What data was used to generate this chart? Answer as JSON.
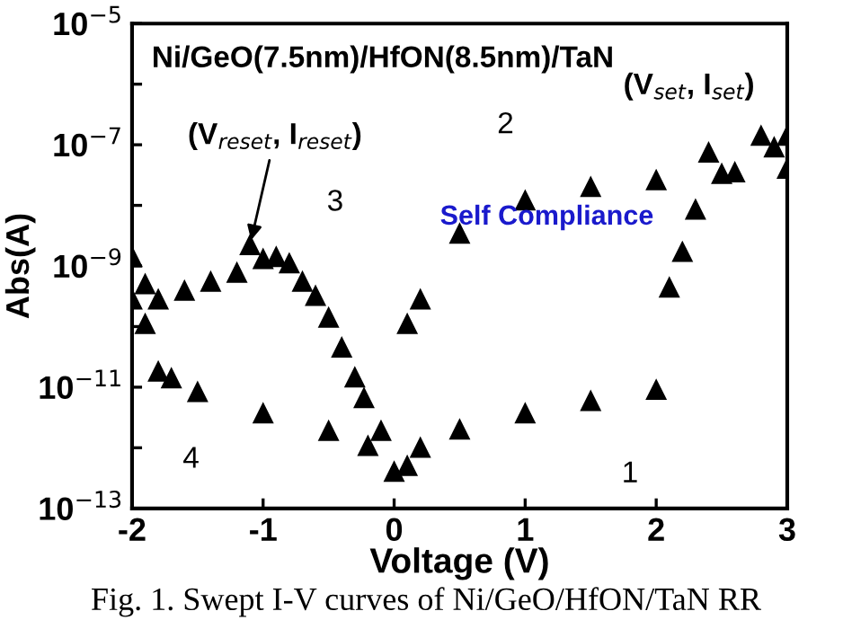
{
  "chart_data": {
    "type": "scatter",
    "title": "Ni/GeO(7.5nm)/HfON(8.5nm)/TaN",
    "xlabel": "Voltage (V)",
    "ylabel": "Abs(A)",
    "log": "y",
    "marker": "triangle",
    "xlim": [
      -2,
      3
    ],
    "xticks": [
      -2,
      -1,
      0,
      1,
      2,
      3
    ],
    "ylim": [
      1e-13,
      1e-05
    ],
    "yticks": [
      {
        "value": 1e-13,
        "label": "10$^{−13}$"
      },
      {
        "value": 1e-12,
        "label": null
      },
      {
        "value": 1e-11,
        "label": "10$^{−11}$"
      },
      {
        "value": 1e-10,
        "label": null
      },
      {
        "value": 1e-09,
        "label": "10$^{−9}$"
      },
      {
        "value": 1e-08,
        "label": null
      },
      {
        "value": 1e-07,
        "label": "10$^{−7}$"
      },
      {
        "value": 1e-06,
        "label": null
      },
      {
        "value": 1e-05,
        "label": "10$^{−5}$"
      }
    ],
    "series": [
      {
        "color": "#000000",
        "x": [
          0.1,
          0.2,
          0.5,
          1.0,
          1.5,
          2.0,
          2.1,
          2.2,
          2.3,
          2.4,
          2.5,
          2.6,
          2.8,
          2.9,
          3.0
        ],
        "values": [
          5e-13,
          1e-12,
          2e-12,
          3.7e-12,
          5.9e-12,
          9e-12,
          4.4e-10,
          1.7e-09,
          8.5e-09,
          7.4e-08,
          null,
          3.5e-08,
          1.4e-07,
          9e-08,
          1.4e-07
        ]
      },
      {
        "color": "#000000",
        "x": [
          3.0,
          2.5,
          2.0,
          1.5,
          1.0,
          0.5,
          0.2,
          0.1
        ],
        "values": [
          4e-08,
          3.3e-08,
          2.6e-08,
          2e-08,
          1.2e-08,
          3.4e-09,
          2.8e-10,
          1.1e-10
        ]
      },
      {
        "color": "#000000",
        "x": [
          -0.1,
          -0.23,
          -0.3,
          -0.4,
          -0.5,
          -0.6,
          -0.7,
          -0.8,
          -0.9,
          -1.0,
          -1.1,
          -1.2,
          -1.4,
          -1.6,
          -1.8,
          -1.9,
          -2.0
        ],
        "values": [
          1.9e-12,
          6.6e-12,
          1.45e-11,
          4.5e-11,
          1.4e-10,
          3.2e-10,
          5.5e-10,
          1.1e-09,
          1.4e-09,
          1.3e-09,
          2.2e-09,
          7.7e-10,
          5.5e-10,
          3.9e-10,
          2.8e-10,
          5e-10,
          1.4e-09
        ]
      },
      {
        "color": "#000000",
        "x": [
          -2.0,
          -1.9,
          -1.8,
          -1.7,
          -1.5,
          -1.0,
          -0.5,
          -0.2,
          0
        ],
        "values": [
          2.8e-10,
          1.1e-10,
          1.8e-11,
          1.4e-11,
          8.3e-12,
          3.7e-12,
          1.9e-12,
          1.07e-12,
          4e-13
        ]
      }
    ],
    "annotations": [
      {
        "text": "(V$_{reset}$, I$_{reset}$)",
        "x": -1.1,
        "y": 2.2e-09
      },
      "(V$_{set}$, I$_{set}$)",
      "Self Compliance",
      "1",
      "2",
      "3",
      "4",
      "Fig. 1. Swept I-V curves of Ni/GeO/HfON/TaN RR"
    ]
  }
}
